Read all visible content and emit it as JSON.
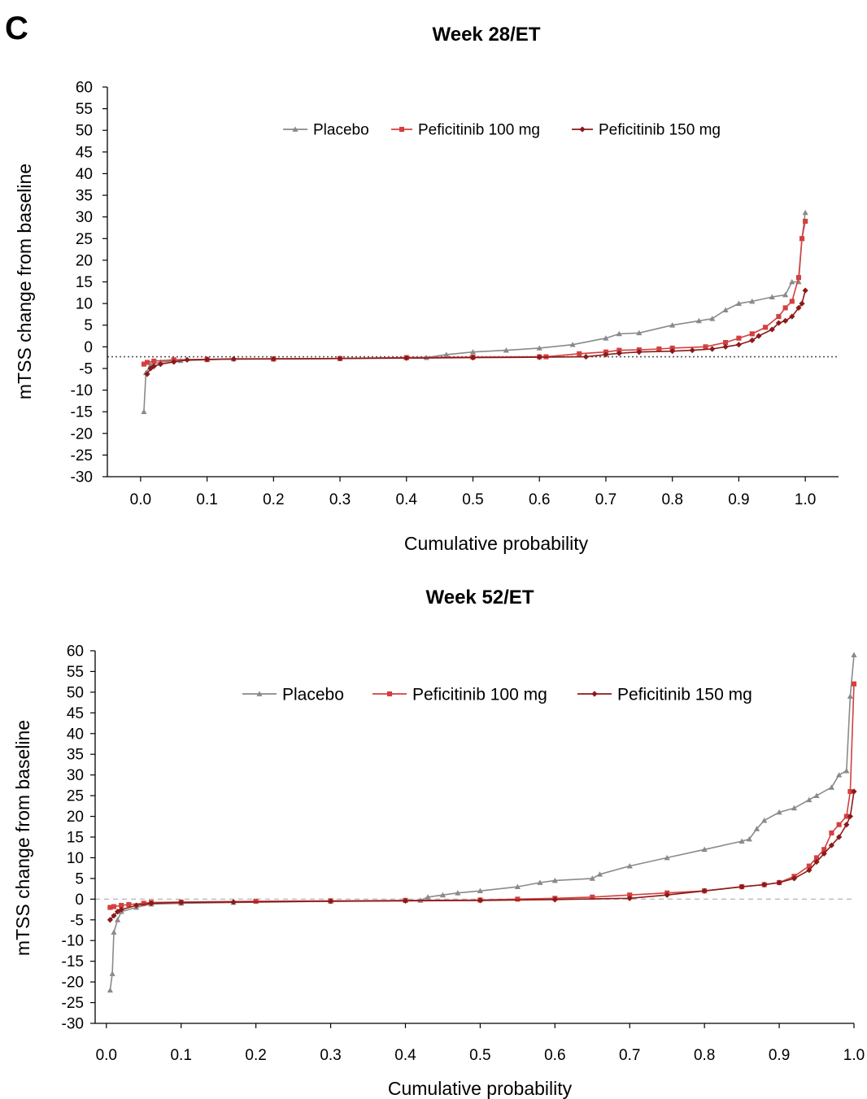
{
  "panel_label": "C",
  "colors": {
    "placebo": "#8a8a8a",
    "pef100": "#d2403f",
    "pef150": "#8b1a1a"
  },
  "chart_data": [
    {
      "type": "line",
      "title": "Week 28/ET",
      "xlabel": "Cumulative probability",
      "ylabel": "mTSS change from baseline",
      "xlim": [
        -0.05,
        1.05
      ],
      "ylim": [
        -30,
        60
      ],
      "x_ticks": [
        "0.0",
        "0.1",
        "0.2",
        "0.3",
        "0.4",
        "0.5",
        "0.6",
        "0.7",
        "0.8",
        "0.9",
        "1.0"
      ],
      "y_ticks": [
        "60",
        "55",
        "50",
        "45",
        "40",
        "35",
        "30",
        "25",
        "20",
        "15",
        "10",
        "5",
        "0",
        "-5",
        "-10",
        "-15",
        "-20",
        "-25",
        "-30"
      ],
      "reference_line": {
        "y": -2.3,
        "style": "dotted"
      },
      "legend": "top-center",
      "series": [
        {
          "name": "Placebo",
          "marker": "triangle",
          "points": [
            [
              0.005,
              -15
            ],
            [
              0.008,
              -6
            ],
            [
              0.015,
              -4.2
            ],
            [
              0.03,
              -3.5
            ],
            [
              0.06,
              -3.2
            ],
            [
              0.1,
              -3
            ],
            [
              0.14,
              -2.8
            ],
            [
              0.2,
              -2.8
            ],
            [
              0.3,
              -2.7
            ],
            [
              0.4,
              -2.5
            ],
            [
              0.43,
              -2.5
            ],
            [
              0.46,
              -1.8
            ],
            [
              0.5,
              -1.2
            ],
            [
              0.55,
              -0.8
            ],
            [
              0.6,
              -0.3
            ],
            [
              0.65,
              0.5
            ],
            [
              0.7,
              2
            ],
            [
              0.72,
              3
            ],
            [
              0.75,
              3.2
            ],
            [
              0.8,
              5
            ],
            [
              0.84,
              6
            ],
            [
              0.86,
              6.5
            ],
            [
              0.88,
              8.5
            ],
            [
              0.9,
              10
            ],
            [
              0.92,
              10.5
            ],
            [
              0.95,
              11.5
            ],
            [
              0.97,
              12
            ],
            [
              0.98,
              15
            ],
            [
              0.99,
              15
            ],
            [
              0.995,
              25
            ],
            [
              1.0,
              31
            ]
          ]
        },
        {
          "name": "Peficitinib 100 mg",
          "marker": "square",
          "points": [
            [
              0.005,
              -4
            ],
            [
              0.01,
              -3.6
            ],
            [
              0.02,
              -3.3
            ],
            [
              0.05,
              -3
            ],
            [
              0.1,
              -2.9
            ],
            [
              0.2,
              -2.8
            ],
            [
              0.3,
              -2.7
            ],
            [
              0.4,
              -2.5
            ],
            [
              0.5,
              -2.4
            ],
            [
              0.6,
              -2.3
            ],
            [
              0.61,
              -2.3
            ],
            [
              0.66,
              -1.6
            ],
            [
              0.7,
              -1.2
            ],
            [
              0.72,
              -0.8
            ],
            [
              0.75,
              -0.7
            ],
            [
              0.78,
              -0.5
            ],
            [
              0.8,
              -0.3
            ],
            [
              0.85,
              0
            ],
            [
              0.88,
              1
            ],
            [
              0.9,
              2
            ],
            [
              0.92,
              3
            ],
            [
              0.94,
              4.5
            ],
            [
              0.96,
              7
            ],
            [
              0.97,
              9
            ],
            [
              0.98,
              10.5
            ],
            [
              0.99,
              16
            ],
            [
              0.995,
              25
            ],
            [
              1.0,
              29
            ]
          ]
        },
        {
          "name": "Peficitinib 150 mg",
          "marker": "diamond",
          "points": [
            [
              0.01,
              -6.3
            ],
            [
              0.015,
              -5
            ],
            [
              0.02,
              -4.5
            ],
            [
              0.03,
              -4
            ],
            [
              0.05,
              -3.5
            ],
            [
              0.07,
              -3
            ],
            [
              0.1,
              -2.9
            ],
            [
              0.14,
              -2.8
            ],
            [
              0.2,
              -2.8
            ],
            [
              0.3,
              -2.7
            ],
            [
              0.4,
              -2.6
            ],
            [
              0.5,
              -2.5
            ],
            [
              0.6,
              -2.4
            ],
            [
              0.67,
              -2.3
            ],
            [
              0.7,
              -1.8
            ],
            [
              0.72,
              -1.5
            ],
            [
              0.75,
              -1.2
            ],
            [
              0.8,
              -1
            ],
            [
              0.83,
              -0.8
            ],
            [
              0.86,
              -0.5
            ],
            [
              0.88,
              0
            ],
            [
              0.9,
              0.5
            ],
            [
              0.92,
              1.5
            ],
            [
              0.93,
              2.5
            ],
            [
              0.95,
              4
            ],
            [
              0.96,
              5.5
            ],
            [
              0.97,
              6
            ],
            [
              0.98,
              7
            ],
            [
              0.99,
              9
            ],
            [
              0.995,
              10
            ],
            [
              1.0,
              13
            ]
          ]
        }
      ]
    },
    {
      "type": "line",
      "title": "Week 52/ET",
      "xlabel": "Cumulative probability",
      "ylabel": "mTSS change from baseline",
      "xlim": [
        -0.015,
        1.0
      ],
      "ylim": [
        -30,
        60
      ],
      "x_ticks": [
        "0.0",
        "0.1",
        "0.2",
        "0.3",
        "0.4",
        "0.5",
        "0.6",
        "0.7",
        "0.8",
        "0.9",
        "1.0"
      ],
      "y_ticks": [
        "60",
        "55",
        "50",
        "45",
        "40",
        "35",
        "30",
        "25",
        "20",
        "15",
        "10",
        "5",
        "0",
        "-5",
        "-10",
        "-15",
        "-20",
        "-25",
        "-30"
      ],
      "reference_line": {
        "y": 0,
        "style": "dashed"
      },
      "legend": "top-center",
      "series": [
        {
          "name": "Placebo",
          "marker": "triangle",
          "points": [
            [
              0.005,
              -22
            ],
            [
              0.008,
              -18
            ],
            [
              0.01,
              -8
            ],
            [
              0.015,
              -5
            ],
            [
              0.02,
              -3
            ],
            [
              0.04,
              -2
            ],
            [
              0.06,
              -1.2
            ],
            [
              0.1,
              -1
            ],
            [
              0.17,
              -0.8
            ],
            [
              0.3,
              -0.5
            ],
            [
              0.42,
              -0.3
            ],
            [
              0.43,
              0.5
            ],
            [
              0.45,
              1
            ],
            [
              0.47,
              1.5
            ],
            [
              0.5,
              2
            ],
            [
              0.55,
              3
            ],
            [
              0.58,
              4
            ],
            [
              0.6,
              4.5
            ],
            [
              0.65,
              5
            ],
            [
              0.66,
              6
            ],
            [
              0.7,
              8
            ],
            [
              0.75,
              10
            ],
            [
              0.8,
              12
            ],
            [
              0.85,
              14
            ],
            [
              0.86,
              14.5
            ],
            [
              0.87,
              17
            ],
            [
              0.88,
              19
            ],
            [
              0.9,
              21
            ],
            [
              0.92,
              22
            ],
            [
              0.94,
              24
            ],
            [
              0.95,
              25
            ],
            [
              0.97,
              27
            ],
            [
              0.98,
              30
            ],
            [
              0.99,
              31
            ],
            [
              0.995,
              49
            ],
            [
              1.0,
              59
            ]
          ]
        },
        {
          "name": "Peficitinib 100 mg",
          "marker": "square",
          "points": [
            [
              0.005,
              -2
            ],
            [
              0.01,
              -1.8
            ],
            [
              0.02,
              -1.5
            ],
            [
              0.03,
              -1.3
            ],
            [
              0.05,
              -1
            ],
            [
              0.06,
              -0.8
            ],
            [
              0.1,
              -0.7
            ],
            [
              0.2,
              -0.5
            ],
            [
              0.3,
              -0.4
            ],
            [
              0.4,
              -0.3
            ],
            [
              0.5,
              -0.2
            ],
            [
              0.55,
              0
            ],
            [
              0.6,
              0.2
            ],
            [
              0.65,
              0.5
            ],
            [
              0.7,
              1
            ],
            [
              0.75,
              1.5
            ],
            [
              0.8,
              2
            ],
            [
              0.85,
              3
            ],
            [
              0.88,
              3.5
            ],
            [
              0.9,
              4
            ],
            [
              0.92,
              5.5
            ],
            [
              0.94,
              8
            ],
            [
              0.95,
              10
            ],
            [
              0.96,
              12
            ],
            [
              0.97,
              16
            ],
            [
              0.98,
              18
            ],
            [
              0.99,
              20
            ],
            [
              0.995,
              26
            ],
            [
              1.0,
              52
            ]
          ]
        },
        {
          "name": "Peficitinib 150 mg",
          "marker": "diamond",
          "points": [
            [
              0.005,
              -5
            ],
            [
              0.01,
              -4
            ],
            [
              0.015,
              -3
            ],
            [
              0.02,
              -2.5
            ],
            [
              0.04,
              -1.5
            ],
            [
              0.06,
              -1
            ],
            [
              0.1,
              -0.8
            ],
            [
              0.17,
              -0.7
            ],
            [
              0.3,
              -0.5
            ],
            [
              0.4,
              -0.4
            ],
            [
              0.5,
              -0.3
            ],
            [
              0.6,
              -0.1
            ],
            [
              0.7,
              0.2
            ],
            [
              0.75,
              1
            ],
            [
              0.8,
              2
            ],
            [
              0.85,
              3
            ],
            [
              0.88,
              3.5
            ],
            [
              0.9,
              4
            ],
            [
              0.92,
              5
            ],
            [
              0.94,
              7
            ],
            [
              0.95,
              9
            ],
            [
              0.96,
              11
            ],
            [
              0.97,
              13
            ],
            [
              0.98,
              15
            ],
            [
              0.99,
              18
            ],
            [
              0.995,
              20
            ],
            [
              1.0,
              26
            ]
          ]
        }
      ]
    }
  ]
}
